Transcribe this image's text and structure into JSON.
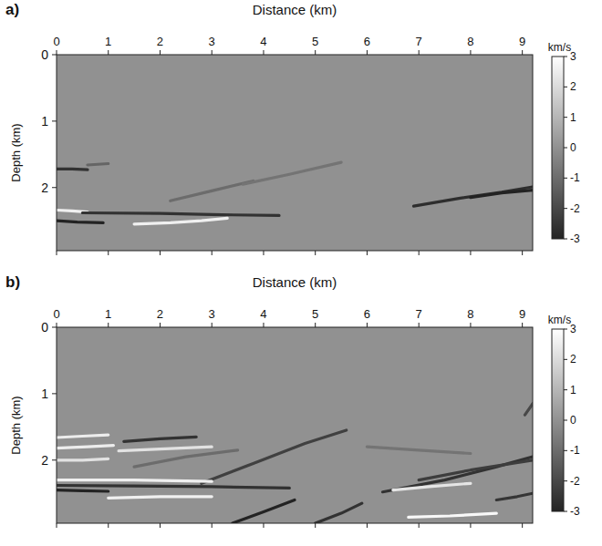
{
  "chart_data": [
    {
      "type": "line",
      "title": "a)",
      "x_label": "Distance (km)",
      "y_label": "Depth (km)",
      "xlim": [
        0,
        9.2
      ],
      "xticks": [
        0,
        1,
        2,
        3,
        4,
        5,
        6,
        7,
        8,
        9
      ],
      "ylim": [
        0,
        2.95
      ],
      "yticks": [
        0,
        1,
        2
      ],
      "colorbar": {
        "label": "km/s",
        "range": [
          -3,
          3
        ],
        "ticks": [
          3,
          2,
          1,
          0,
          -1,
          -2,
          -3
        ]
      },
      "series": [
        {
          "x": [
            0,
            0.3,
            0.6
          ],
          "values": [
            1.72,
            1.72,
            1.73
          ],
          "perturbation": -2.6
        },
        {
          "x": [
            0.6,
            1.0
          ],
          "values": [
            1.66,
            1.64
          ],
          "perturbation": -1.2
        },
        {
          "x": [
            0,
            0.4,
            0.9
          ],
          "values": [
            2.5,
            2.52,
            2.53
          ],
          "perturbation": -3
        },
        {
          "x": [
            0,
            0.3,
            0.6
          ],
          "values": [
            2.34,
            2.35,
            2.37
          ],
          "perturbation": 2.6
        },
        {
          "x": [
            0.5,
            2.0,
            3.2,
            4.3
          ],
          "values": [
            2.38,
            2.39,
            2.41,
            2.42
          ],
          "perturbation": -2.6
        },
        {
          "x": [
            1.5,
            2.2,
            2.8,
            3.3
          ],
          "values": [
            2.55,
            2.53,
            2.5,
            2.46
          ],
          "perturbation": 2.6
        },
        {
          "x": [
            2.2,
            3.0,
            3.8
          ],
          "values": [
            2.2,
            2.05,
            1.9
          ],
          "perturbation": -1
        },
        {
          "x": [
            3.6,
            4.5,
            5.5
          ],
          "values": [
            1.95,
            1.8,
            1.62
          ],
          "perturbation": -0.8
        },
        {
          "x": [
            6.9,
            7.8,
            8.6,
            9.2
          ],
          "values": [
            2.28,
            2.16,
            2.07,
            1.99
          ],
          "perturbation": -2.7
        },
        {
          "x": [
            8.0,
            8.6,
            9.2
          ],
          "values": [
            2.15,
            2.08,
            2.04
          ],
          "perturbation": -3
        }
      ]
    },
    {
      "type": "line",
      "title": "b)",
      "x_label": "Distance (km)",
      "y_label": "Depth (km)",
      "xlim": [
        0,
        9.2
      ],
      "xticks": [
        0,
        1,
        2,
        3,
        4,
        5,
        6,
        7,
        8,
        9
      ],
      "ylim": [
        0,
        2.95
      ],
      "yticks": [
        0,
        1,
        2
      ],
      "colorbar": {
        "label": "km/s",
        "range": [
          -3,
          3
        ],
        "ticks": [
          3,
          2,
          1,
          0,
          -1,
          -2,
          -3
        ]
      },
      "series": [
        {
          "x": [
            0,
            0.5,
            1.0
          ],
          "values": [
            1.66,
            1.64,
            1.62
          ],
          "perturbation": 2.5
        },
        {
          "x": [
            0,
            0.6,
            1.1
          ],
          "values": [
            1.82,
            1.8,
            1.78
          ],
          "perturbation": 2.5
        },
        {
          "x": [
            0,
            0.5,
            1.0
          ],
          "values": [
            2.0,
            2.0,
            1.98
          ],
          "perturbation": 2.2
        },
        {
          "x": [
            1.3,
            2.0,
            2.7
          ],
          "values": [
            1.72,
            1.68,
            1.65
          ],
          "perturbation": -2.6
        },
        {
          "x": [
            1.2,
            2.1,
            3.0
          ],
          "values": [
            1.86,
            1.83,
            1.8
          ],
          "perturbation": 2.2
        },
        {
          "x": [
            2.8,
            3.8,
            4.8,
            5.6
          ],
          "values": [
            2.35,
            2.05,
            1.75,
            1.55
          ],
          "perturbation": -2.2
        },
        {
          "x": [
            0,
            0.5,
            1.0
          ],
          "values": [
            2.45,
            2.46,
            2.47
          ],
          "perturbation": -3
        },
        {
          "x": [
            0,
            1.5,
            3.0,
            4.5
          ],
          "values": [
            2.38,
            2.39,
            2.4,
            2.42
          ],
          "perturbation": -2.6
        },
        {
          "x": [
            0,
            1.5,
            3.0
          ],
          "values": [
            2.3,
            2.3,
            2.32
          ],
          "perturbation": 2.6
        },
        {
          "x": [
            1.0,
            2.0,
            3.0
          ],
          "values": [
            2.57,
            2.55,
            2.55
          ],
          "perturbation": 2.6
        },
        {
          "x": [
            3.4,
            4.0,
            4.6
          ],
          "values": [
            2.95,
            2.78,
            2.6
          ],
          "perturbation": -3
        },
        {
          "x": [
            5.0,
            5.5,
            5.9
          ],
          "values": [
            2.95,
            2.8,
            2.65
          ],
          "perturbation": -2.6
        },
        {
          "x": [
            6.3,
            7.5,
            8.5,
            9.2
          ],
          "values": [
            2.48,
            2.3,
            2.1,
            1.95
          ],
          "perturbation": -2.6
        },
        {
          "x": [
            6.5,
            7.2,
            8.0
          ],
          "values": [
            2.45,
            2.4,
            2.35
          ],
          "perturbation": 2.3
        },
        {
          "x": [
            7.0,
            8.0,
            9.2
          ],
          "values": [
            2.3,
            2.15,
            2.0
          ],
          "perturbation": -2.3
        },
        {
          "x": [
            6.8,
            7.6,
            8.5
          ],
          "values": [
            2.86,
            2.84,
            2.8
          ],
          "perturbation": 2.8
        },
        {
          "x": [
            8.5,
            8.9,
            9.2
          ],
          "values": [
            2.6,
            2.55,
            2.5
          ],
          "perturbation": -2.5
        },
        {
          "x": [
            9.05,
            9.2
          ],
          "values": [
            1.32,
            1.15
          ],
          "perturbation": -2
        },
        {
          "x": [
            6.0,
            7.0,
            8.0
          ],
          "values": [
            1.8,
            1.85,
            1.9
          ],
          "perturbation": -0.8
        },
        {
          "x": [
            1.5,
            2.5,
            3.5
          ],
          "values": [
            2.1,
            1.95,
            1.85
          ],
          "perturbation": -1
        }
      ]
    }
  ]
}
